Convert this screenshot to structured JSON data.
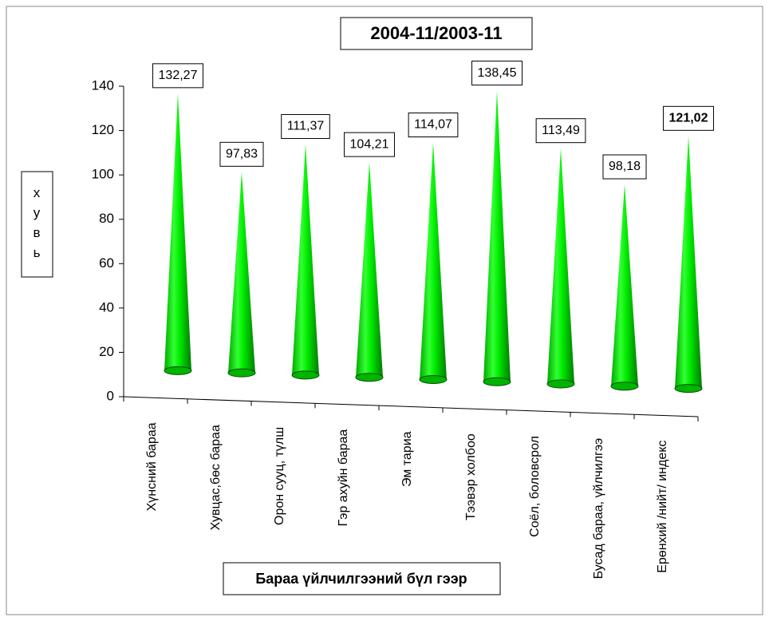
{
  "chart_data": {
    "type": "cone",
    "title": "2004-11/2003-11",
    "y_label": "хувь",
    "x_label": "Бараа үйлчилгээний бүл гээр",
    "categories": [
      "Хүнсний бараа",
      "Хувцас,бөс бараа",
      "Орон сууц, түлш",
      "Гэр ахуйн бараа",
      "Эм тариа",
      "Тээвэр холбоо",
      "Соёл, боловсрол",
      "Бусад бараа, үйлчилгээ",
      "Ерөнхий /нийт/ индекс"
    ],
    "values": [
      132.27,
      97.83,
      111.37,
      104.21,
      114.07,
      138.45,
      113.49,
      98.18,
      121.02
    ],
    "value_labels": [
      "132,27",
      "97,83",
      "111,37",
      "104,21",
      "114,07",
      "138,45",
      "113,49",
      "98,18",
      "121,02"
    ],
    "color": "#00e000",
    "ylim": [
      0,
      140
    ],
    "yticks": [
      0,
      20,
      40,
      60,
      80,
      100,
      120,
      140
    ]
  }
}
